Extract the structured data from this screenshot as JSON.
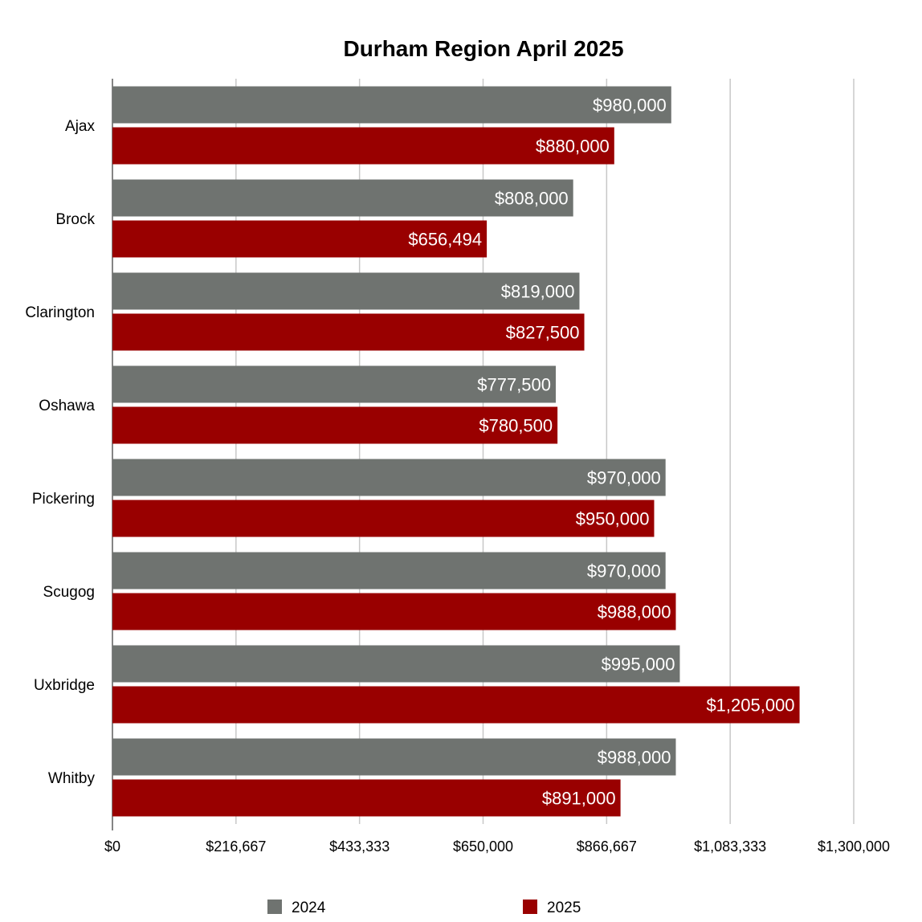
{
  "chart_data": {
    "type": "bar",
    "orientation": "horizontal",
    "title": "Durham Region April 2025",
    "xlabel": "",
    "ylabel": "",
    "categories": [
      "Ajax",
      "Brock",
      "Clarington",
      "Oshawa",
      "Pickering",
      "Scugog",
      "Uxbridge",
      "Whitby"
    ],
    "series": [
      {
        "name": "2024",
        "color": "#6f7370",
        "values": [
          980000,
          808000,
          819000,
          777500,
          970000,
          970000,
          995000,
          988000
        ],
        "labels": [
          "$980,000",
          "$808,000",
          "$819,000",
          "$777,500",
          "$970,000",
          "$970,000",
          "$995,000",
          "$988,000"
        ]
      },
      {
        "name": "2025",
        "color": "#990000",
        "values": [
          880000,
          656494,
          827500,
          780500,
          950000,
          988000,
          1205000,
          891000
        ],
        "labels": [
          "$880,000",
          "$656,494",
          "$827,500",
          "$780,500",
          "$950,000",
          "$988,000",
          "$1,205,000",
          "$891,000"
        ]
      }
    ],
    "xlim": [
      0,
      1300000
    ],
    "xticks": [
      0,
      216667,
      433333,
      650000,
      866667,
      1083333,
      1300000
    ],
    "xtick_labels": [
      "$0",
      "$216,667",
      "$433,333",
      "$650,000",
      "$866,667",
      "$1,083,333",
      "$1,300,000"
    ],
    "grid": true,
    "legend": "bottom"
  }
}
